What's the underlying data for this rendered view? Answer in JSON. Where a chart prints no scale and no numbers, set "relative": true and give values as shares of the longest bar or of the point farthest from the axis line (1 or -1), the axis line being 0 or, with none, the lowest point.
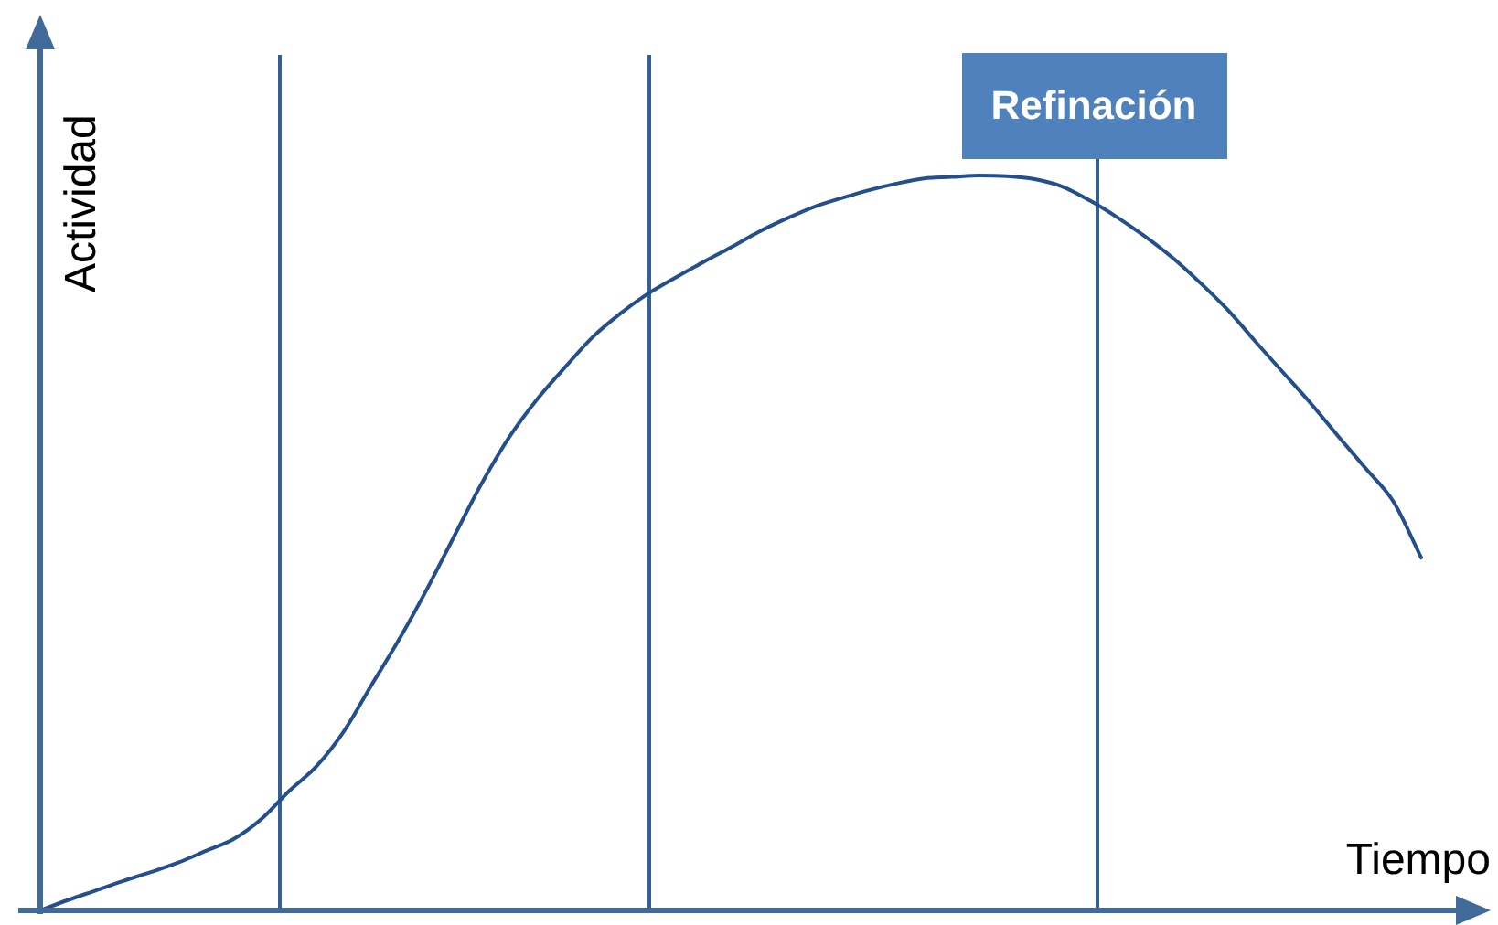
{
  "chart_data": {
    "type": "line",
    "xlabel": "Tiempo",
    "ylabel": "Actividad",
    "relative": true,
    "marker": "none",
    "line_style": "solid",
    "categories": [
      null,
      null,
      null,
      null,
      null,
      null,
      null,
      null,
      null,
      null,
      null,
      null,
      null,
      null,
      null,
      null,
      null,
      null,
      null,
      null,
      null,
      null,
      null,
      null,
      null,
      null,
      null,
      null,
      null,
      null,
      null,
      null,
      null,
      null,
      null,
      null,
      null,
      null,
      null,
      null,
      null,
      null,
      null,
      null,
      null,
      null,
      null,
      null,
      null,
      null,
      null
    ],
    "series": [
      {
        "color": "#234f8c",
        "values": [
          0,
          0.014,
          0.027,
          0.04,
          0.052,
          0.065,
          0.081,
          0.097,
          0.124,
          0.162,
          0.196,
          0.244,
          0.307,
          0.369,
          0.437,
          0.51,
          0.582,
          0.645,
          0.696,
          0.739,
          0.78,
          0.812,
          0.839,
          0.861,
          0.882,
          0.902,
          0.923,
          0.941,
          0.957,
          0.969,
          0.98,
          0.989,
          0.996,
          0.998,
          1,
          0.999,
          0.995,
          0.985,
          0.966,
          0.943,
          0.917,
          0.888,
          0.854,
          0.817,
          0.774,
          0.732,
          0.69,
          0.645,
          0.601,
          0.556,
          0.48
        ]
      }
    ],
    "annotations": [
      "Refinación"
    ]
  }
}
